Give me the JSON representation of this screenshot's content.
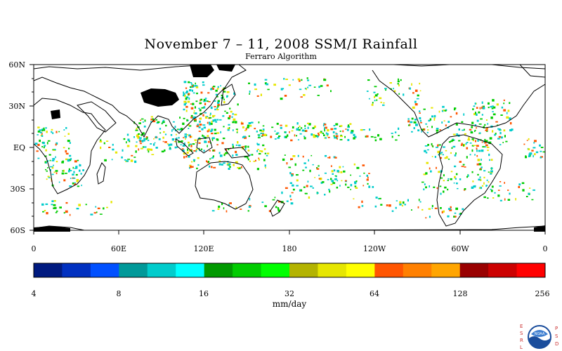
{
  "title": "November 7 – 11, 2008 SSM/I Rainfall",
  "subtitle": "Ferraro Algorithm",
  "lat_labels": [
    "60N",
    "30N",
    "EQ",
    "30S",
    "60S"
  ],
  "lon_labels": [
    "0",
    "60E",
    "120E",
    "180",
    "120W",
    "60W",
    "0"
  ],
  "colorbar": {
    "units": "mm/day",
    "tick_labels": [
      "4",
      "8",
      "16",
      "32",
      "64",
      "128",
      "256"
    ],
    "colors": [
      "#001a80",
      "#0030c0",
      "#0050ff",
      "#009999",
      "#00cccc",
      "#00ffff",
      "#009900",
      "#00cc00",
      "#00ff00",
      "#b3b300",
      "#e6e600",
      "#ffff00",
      "#ff5500",
      "#ff8000",
      "#ffa500",
      "#990000",
      "#cc0000",
      "#ff0000"
    ]
  },
  "logo": {
    "left_letters": "ESRL",
    "right_letters": "PSD",
    "emblem": "NOAA"
  },
  "map_colors": {
    "coastline": "#000000",
    "missing_data": "#000000",
    "rain_light": "#00cccc",
    "rain_medium": "#00cc00",
    "rain_heavy": "#e6e600",
    "rain_extreme": "#ff5500"
  }
}
